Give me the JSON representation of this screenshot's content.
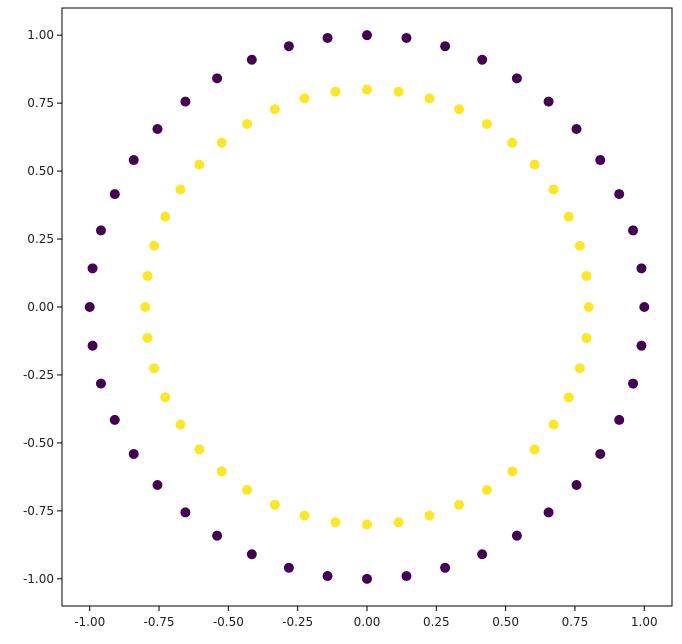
{
  "chart_data": {
    "type": "scatter",
    "title": "",
    "xlabel": "",
    "ylabel": "",
    "xlim": [
      -1.1,
      1.1
    ],
    "ylim": [
      -1.1,
      1.1
    ],
    "grid": false,
    "legend": "none",
    "xticks": [
      "-1.00",
      "-0.75",
      "-0.50",
      "-0.25",
      "0.00",
      "0.25",
      "0.50",
      "0.75",
      "1.00"
    ],
    "yticks": [
      "-1.00",
      "-0.75",
      "-0.50",
      "-0.25",
      "0.00",
      "0.25",
      "0.50",
      "0.75",
      "1.00"
    ],
    "series": [
      {
        "color": "#440154",
        "points": [
          [
            1.0,
            0.0
          ],
          [
            0.9898,
            0.1423
          ],
          [
            0.9595,
            0.2817
          ],
          [
            0.9096,
            0.4154
          ],
          [
            0.8413,
            0.5406
          ],
          [
            0.7557,
            0.6549
          ],
          [
            0.6549,
            0.7557
          ],
          [
            0.5406,
            0.8413
          ],
          [
            0.4154,
            0.9096
          ],
          [
            0.2817,
            0.9595
          ],
          [
            0.1423,
            0.9898
          ],
          [
            0.0,
            1.0
          ],
          [
            -0.1423,
            0.9898
          ],
          [
            -0.2817,
            0.9595
          ],
          [
            -0.4154,
            0.9096
          ],
          [
            -0.5406,
            0.8413
          ],
          [
            -0.6549,
            0.7557
          ],
          [
            -0.7557,
            0.6549
          ],
          [
            -0.8413,
            0.5406
          ],
          [
            -0.9096,
            0.4154
          ],
          [
            -0.9595,
            0.2817
          ],
          [
            -0.9898,
            0.1423
          ],
          [
            -1.0,
            0.0
          ],
          [
            -0.9898,
            -0.1423
          ],
          [
            -0.9595,
            -0.2817
          ],
          [
            -0.9096,
            -0.4154
          ],
          [
            -0.8413,
            -0.5406
          ],
          [
            -0.7557,
            -0.6549
          ],
          [
            -0.6549,
            -0.7557
          ],
          [
            -0.5406,
            -0.8413
          ],
          [
            -0.4154,
            -0.9096
          ],
          [
            -0.2817,
            -0.9595
          ],
          [
            -0.1423,
            -0.9898
          ],
          [
            0.0,
            -1.0
          ],
          [
            0.1423,
            -0.9898
          ],
          [
            0.2817,
            -0.9595
          ],
          [
            0.4154,
            -0.9096
          ],
          [
            0.5406,
            -0.8413
          ],
          [
            0.6549,
            -0.7557
          ],
          [
            0.7557,
            -0.6549
          ],
          [
            0.8413,
            -0.5406
          ],
          [
            0.9096,
            -0.4154
          ],
          [
            0.9595,
            -0.2817
          ],
          [
            0.9898,
            -0.1423
          ]
        ]
      },
      {
        "color": "#fde725",
        "points": [
          [
            0.8,
            0.0
          ],
          [
            0.7918,
            0.1139
          ],
          [
            0.7676,
            0.2254
          ],
          [
            0.7277,
            0.3323
          ],
          [
            0.673,
            0.4325
          ],
          [
            0.6046,
            0.5239
          ],
          [
            0.5239,
            0.6046
          ],
          [
            0.4325,
            0.673
          ],
          [
            0.3323,
            0.7277
          ],
          [
            0.2254,
            0.7676
          ],
          [
            0.1139,
            0.7918
          ],
          [
            0.0,
            0.8
          ],
          [
            -0.1139,
            0.7918
          ],
          [
            -0.2254,
            0.7676
          ],
          [
            -0.3323,
            0.7277
          ],
          [
            -0.4325,
            0.673
          ],
          [
            -0.5239,
            0.6046
          ],
          [
            -0.6046,
            0.5239
          ],
          [
            -0.673,
            0.4325
          ],
          [
            -0.7277,
            0.3323
          ],
          [
            -0.7676,
            0.2254
          ],
          [
            -0.7918,
            0.1139
          ],
          [
            -0.8,
            0.0
          ],
          [
            -0.7918,
            -0.1139
          ],
          [
            -0.7676,
            -0.2254
          ],
          [
            -0.7277,
            -0.3323
          ],
          [
            -0.673,
            -0.4325
          ],
          [
            -0.6046,
            -0.5239
          ],
          [
            -0.5239,
            -0.6046
          ],
          [
            -0.4325,
            -0.673
          ],
          [
            -0.3323,
            -0.7277
          ],
          [
            -0.2254,
            -0.7676
          ],
          [
            -0.1139,
            -0.7918
          ],
          [
            0.0,
            -0.8
          ],
          [
            0.1139,
            -0.7918
          ],
          [
            0.2254,
            -0.7676
          ],
          [
            0.3323,
            -0.7277
          ],
          [
            0.4325,
            -0.673
          ],
          [
            0.5239,
            -0.6046
          ],
          [
            0.6046,
            -0.5239
          ],
          [
            0.673,
            -0.4325
          ],
          [
            0.7277,
            -0.3323
          ],
          [
            0.7676,
            -0.2254
          ],
          [
            0.7918,
            -0.1139
          ]
        ]
      }
    ]
  }
}
